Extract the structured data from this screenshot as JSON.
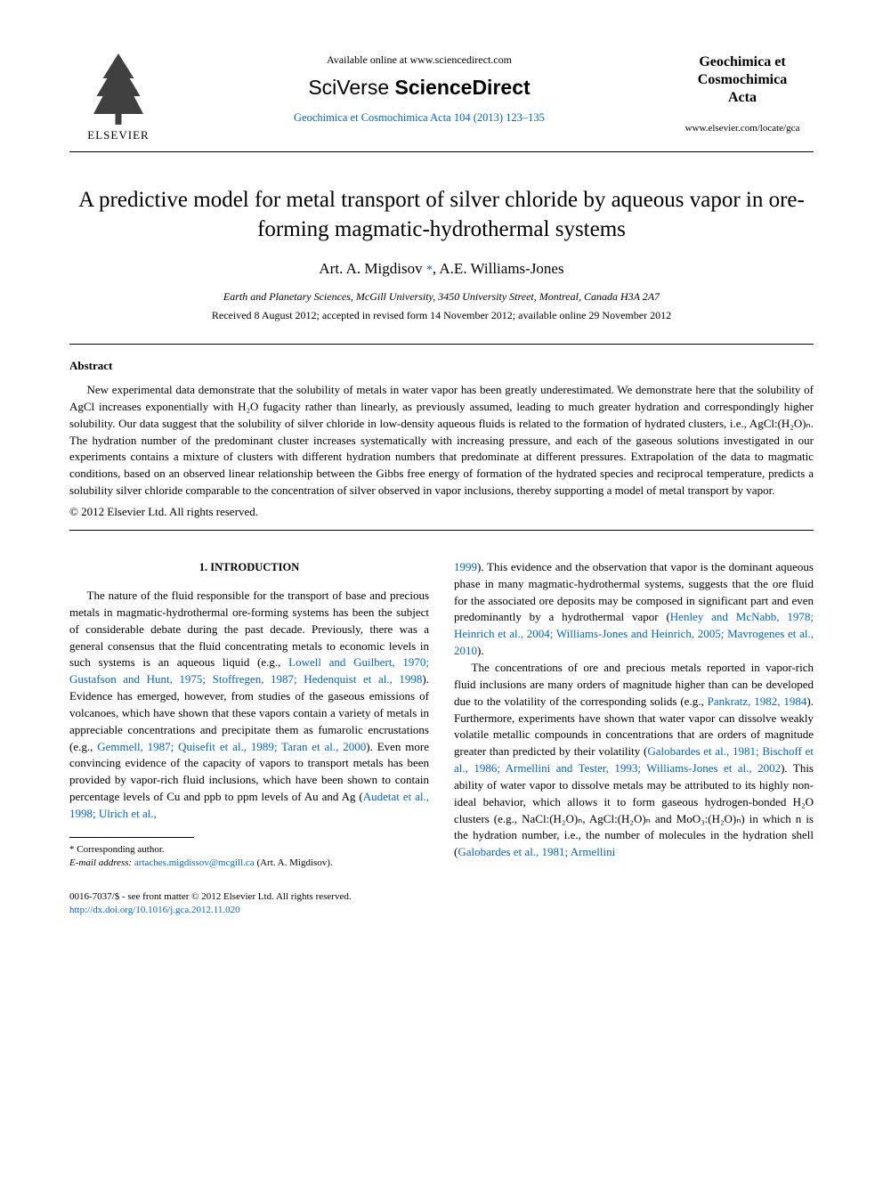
{
  "header": {
    "elsevier_label": "ELSEVIER",
    "available_online": "Available online at www.sciencedirect.com",
    "sciverse_prefix": "SciVerse",
    "sciverse_main": " ScienceDirect",
    "journal_ref": "Geochimica et Cosmochimica Acta 104 (2013) 123–135",
    "journal_name_l1": "Geochimica et",
    "journal_name_l2": "Cosmochimica",
    "journal_name_l3": "Acta",
    "journal_url": "www.elsevier.com/locate/gca"
  },
  "paper": {
    "title": "A predictive model for metal transport of silver chloride by aqueous vapor in ore-forming magmatic-hydrothermal systems",
    "authors_prefix": "Art. A. Migdisov ",
    "corr_symbol": "*",
    "authors_suffix": ", A.E. Williams-Jones",
    "affiliation": "Earth and Planetary Sciences, McGill University, 3450 University Street, Montreal, Canada H3A 2A7",
    "dates": "Received 8 August 2012; accepted in revised form 14 November 2012; available online 29 November 2012"
  },
  "abstract": {
    "heading": "Abstract",
    "body": "New experimental data demonstrate that the solubility of metals in water vapor has been greatly underestimated. We demonstrate here that the solubility of AgCl increases exponentially with H₂O fugacity rather than linearly, as previously assumed, leading to much greater hydration and correspondingly higher solubility. Our data suggest that the solubility of silver chloride in low-density aqueous fluids is related to the formation of hydrated clusters, i.e., AgCl:(H₂O)ₙ. The hydration number of the predominant cluster increases systematically with increasing pressure, and each of the gaseous solutions investigated in our experiments contains a mixture of clusters with different hydration numbers that predominate at different pressures. Extrapolation of the data to magmatic conditions, based on an observed linear relationship between the Gibbs free energy of formation of the hydrated species and reciprocal temperature, predicts a solubility silver chloride comparable to the concentration of silver observed in vapor inclusions, thereby supporting a model of metal transport by vapor.",
    "copyright": "© 2012 Elsevier Ltd. All rights reserved."
  },
  "body": {
    "section_heading": "1. INTRODUCTION",
    "left_p1_a": "The nature of the fluid responsible for the transport of base and precious metals in magmatic-hydrothermal ore-forming systems has been the subject of considerable debate during the past decade. Previously, there was a general consensus that the fluid concentrating metals to economic levels in such systems is an aqueous liquid (e.g., ",
    "left_p1_cite1": "Lowell and Guilbert, 1970; Gustafson and Hunt, 1975; Stoffregen, 1987; Hedenquist et al., 1998",
    "left_p1_b": "). Evidence has emerged, however, from studies of the gaseous emissions of volcanoes, which have shown that these vapors contain a variety of metals in appreciable concentrations and precipitate them as fumarolic encrustations (e.g., ",
    "left_p1_cite2": "Gemmell, 1987; Quisefit et al., 1989; Taran et al., 2000",
    "left_p1_c": "). Even more convincing evidence of the capacity of vapors to transport metals has been provided by vapor-rich fluid inclusions, which have been shown to contain percentage levels of Cu and ppb to ppm levels of Au and Ag (",
    "left_p1_cite3": "Audetat et al., 1998; Ulrich et al.,",
    "right_p1_cite_cont": "1999",
    "right_p1_a": "). This evidence and the observation that vapor is the dominant aqueous phase in many magmatic-hydrothermal systems, suggests that the ore fluid for the associated ore deposits may be composed in significant part and even predominantly by a hydrothermal vapor (",
    "right_p1_cite1": "Henley and McNabb, 1978; Heinrich et al., 2004; Williams-Jones and Heinrich, 2005; Mavrogenes et al., 2010",
    "right_p1_b": ").",
    "right_p2_a": "The concentrations of ore and precious metals reported in vapor-rich fluid inclusions are many orders of magnitude higher than can be developed due to the volatility of the corresponding solids (e.g., ",
    "right_p2_cite1": "Pankratz, 1982, 1984",
    "right_p2_b": "). Furthermore, experiments have shown that water vapor can dissolve weakly volatile metallic compounds in concentrations that are orders of magnitude greater than predicted by their volatility (",
    "right_p2_cite2": "Galobardes et al., 1981; Bischoff et al., 1986; Armellini and Tester, 1993; Williams-Jones et al., 2002",
    "right_p2_c": "). This ability of water vapor to dissolve metals may be attributed to its highly non-ideal behavior, which allows it to form gaseous hydrogen-bonded H₂O clusters (e.g., NaCl:(H₂O)ₙ, AgCl:(H₂O)ₙ and MoO₃:(H₂O)ₙ) in which n is the hydration number, i.e., the number of molecules in the hydration shell (",
    "right_p2_cite3": "Galobardes et al., 1981; Armellini"
  },
  "footer": {
    "corr_author": "* Corresponding author.",
    "email_label": "E-mail address: ",
    "email": "artaches.migdissov@mcgill.ca",
    "email_suffix": " (Art. A. Migdisov).",
    "front_matter": "0016-7037/$ - see front matter © 2012 Elsevier Ltd. All rights reserved.",
    "doi": "http://dx.doi.org/10.1016/j.gca.2012.11.020"
  },
  "style": {
    "link_color": "#0066cc",
    "text_color": "#000000",
    "bg_color": "#ffffff",
    "title_fontsize": 25,
    "author_fontsize": 17,
    "body_fontsize": 13,
    "footnote_fontsize": 11
  }
}
